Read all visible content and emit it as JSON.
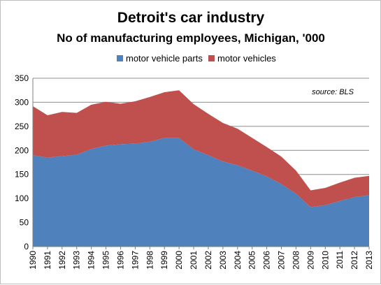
{
  "chart_data": {
    "type": "area",
    "stacked": true,
    "title": "Detroit's car industry",
    "subtitle": "No of manufacturing employees, Michigan, '000",
    "source": "source: BLS",
    "categories": [
      "1990",
      "1991",
      "1992",
      "1993",
      "1994",
      "1995",
      "1996",
      "1997",
      "1998",
      "1999",
      "2000",
      "2001",
      "2002",
      "2003",
      "2004",
      "2005",
      "2006",
      "2007",
      "2008",
      "2009",
      "2010",
      "2011",
      "2012",
      "2013"
    ],
    "series": [
      {
        "name": "motor vehicle parts",
        "color": "#4f81bd",
        "values": [
          190,
          185,
          188,
          191,
          203,
          210,
          213,
          214,
          218,
          226,
          226,
          202,
          190,
          177,
          169,
          158,
          146,
          130,
          110,
          82,
          86,
          95,
          103,
          107
        ]
      },
      {
        "name": "motor vehicles",
        "color": "#c0504d",
        "values": [
          102,
          88,
          92,
          87,
          92,
          91,
          84,
          88,
          93,
          95,
          99,
          94,
          86,
          80,
          76,
          68,
          61,
          57,
          48,
          35,
          36,
          38,
          40,
          40
        ]
      }
    ],
    "ylim": [
      0,
      350
    ],
    "yticks": [
      "0",
      "50",
      "100",
      "150",
      "200",
      "250",
      "300",
      "350"
    ],
    "grid": true,
    "legend_position": "top"
  }
}
